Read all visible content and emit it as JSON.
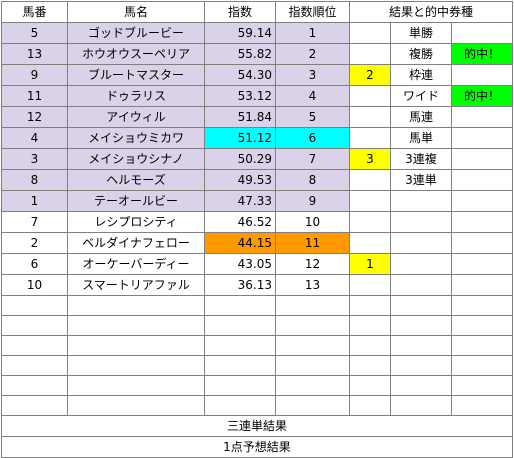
{
  "headers": {
    "number": "馬番",
    "horse": "馬名",
    "index": "指数",
    "rank": "指数順位",
    "result": "結果と的中券種"
  },
  "rows": [
    {
      "number": "5",
      "horse": "ゴッドブルービー",
      "index": "59.14",
      "rank": "1",
      "result": "",
      "ticket": "単勝",
      "hit": ""
    },
    {
      "number": "13",
      "horse": "ホウオウスーペリア",
      "index": "55.82",
      "rank": "2",
      "result": "",
      "ticket": "複勝",
      "hit": "的中！"
    },
    {
      "number": "9",
      "horse": "ブルートマスター",
      "index": "54.30",
      "rank": "3",
      "result": "2",
      "ticket": "枠連",
      "hit": ""
    },
    {
      "number": "11",
      "horse": "ドゥラリス",
      "index": "53.12",
      "rank": "4",
      "result": "",
      "ticket": "ワイド",
      "hit": "的中！"
    },
    {
      "number": "12",
      "horse": "アイウィル",
      "index": "51.84",
      "rank": "5",
      "result": "",
      "ticket": "馬連",
      "hit": ""
    },
    {
      "number": "4",
      "horse": "メイショウミカワ",
      "index": "51.12",
      "rank": "6",
      "result": "",
      "ticket": "馬単",
      "hit": ""
    },
    {
      "number": "3",
      "horse": "メイショウシナノ",
      "index": "50.29",
      "rank": "7",
      "result": "3",
      "ticket": "3連複",
      "hit": ""
    },
    {
      "number": "8",
      "horse": "ヘルモーズ",
      "index": "49.53",
      "rank": "8",
      "result": "",
      "ticket": "3連単",
      "hit": ""
    },
    {
      "number": "1",
      "horse": "テーオールビー",
      "index": "47.33",
      "rank": "9",
      "result": "",
      "ticket": "",
      "hit": ""
    },
    {
      "number": "7",
      "horse": "レシプロシティ",
      "index": "46.52",
      "rank": "10",
      "result": "",
      "ticket": "",
      "hit": ""
    },
    {
      "number": "2",
      "horse": "ベルダイナフェロー",
      "index": "44.15",
      "rank": "11",
      "result": "",
      "ticket": "",
      "hit": ""
    },
    {
      "number": "6",
      "horse": "オーケーバーディー",
      "index": "43.05",
      "rank": "12",
      "result": "1",
      "ticket": "",
      "hit": ""
    },
    {
      "number": "10",
      "horse": "スマートリアファル",
      "index": "36.13",
      "rank": "13",
      "result": "",
      "ticket": "",
      "hit": ""
    }
  ],
  "footer": {
    "trifecta_result": "三連単結果",
    "one_point_result": "1点予想結果"
  },
  "colors": {
    "lavender": "#d9d2e9",
    "cyan": "#00ffff",
    "orange": "#ff9900",
    "yellow": "#ffff00",
    "green": "#00ff00",
    "grid": "#808080"
  }
}
